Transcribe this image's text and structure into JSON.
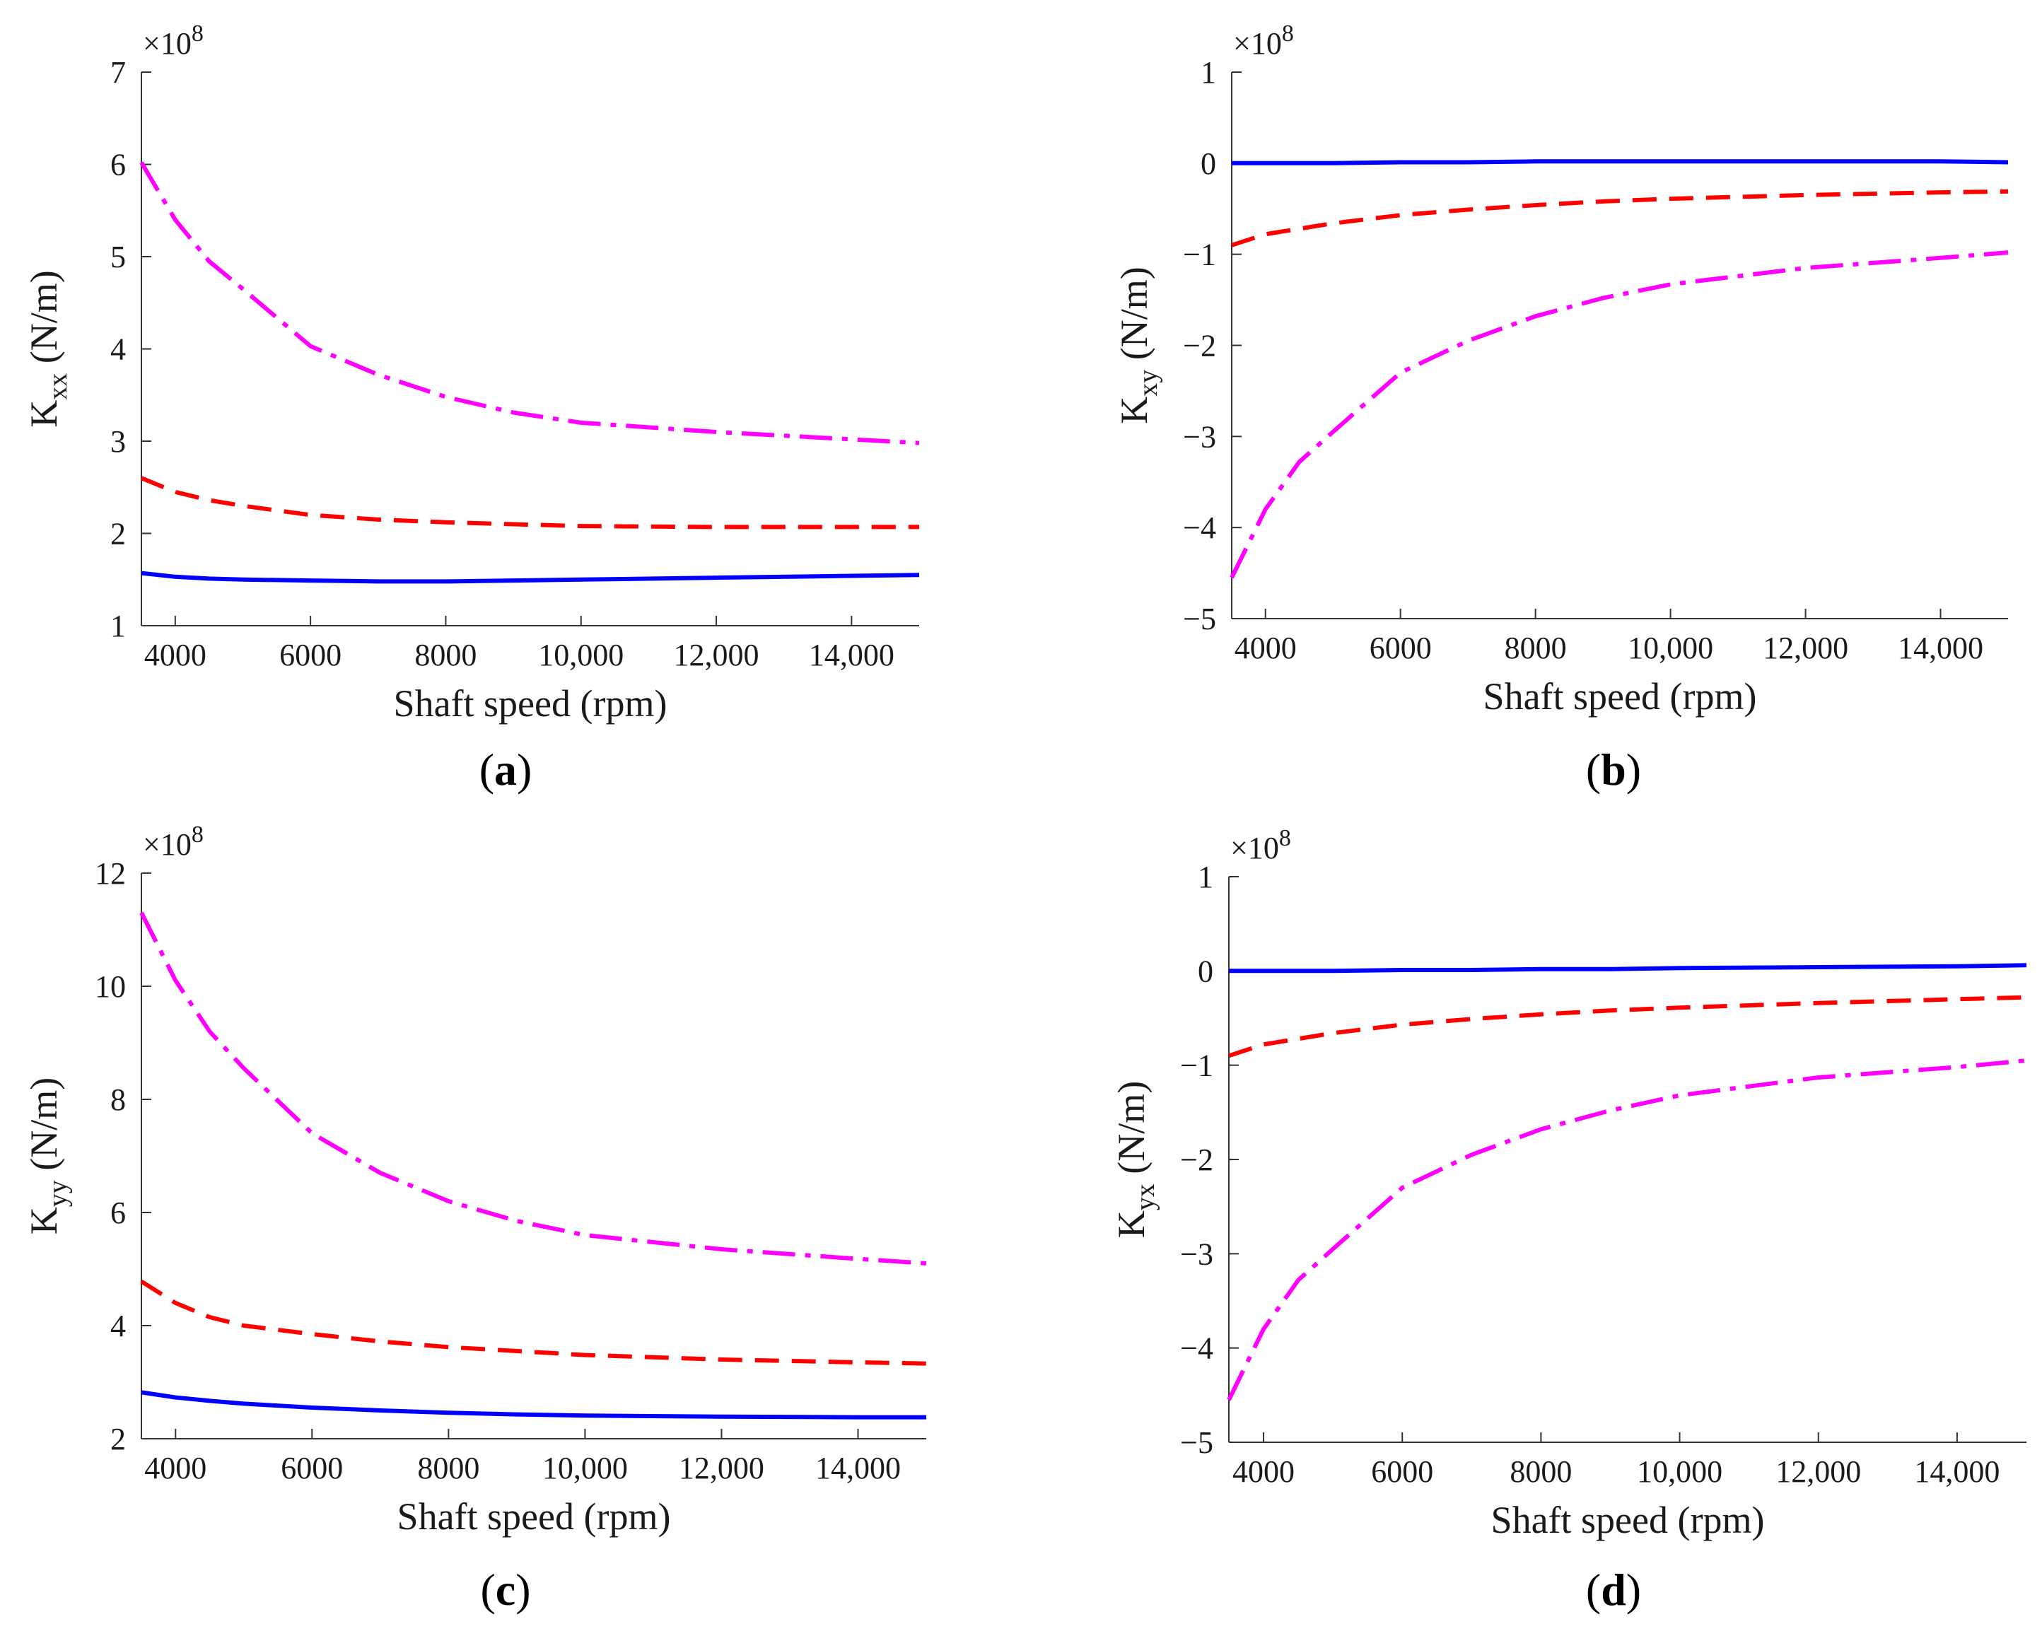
{
  "chart_data": [
    {
      "type": "line",
      "panel_label": "a",
      "ylabel_main": "K",
      "ylabel_sub": "xx",
      "ylabel_unit": " (N/m)",
      "xlabel": "Shaft speed (rpm)",
      "multiplier_base": "×10",
      "multiplier_exp": "8",
      "xlim": [
        3500,
        15000
      ],
      "ylim": [
        1,
        7
      ],
      "xticks": [
        4000,
        6000,
        8000,
        10000,
        12000,
        14000
      ],
      "xtick_labels": [
        "4000",
        "6000",
        "8000",
        "10,000",
        "12,000",
        "14,000"
      ],
      "yticks": [
        1,
        2,
        3,
        4,
        5,
        6,
        7
      ],
      "ytick_labels": [
        "1",
        "2",
        "3",
        "4",
        "5",
        "6",
        "7"
      ],
      "x": [
        3500,
        4000,
        4500,
        5000,
        6000,
        7000,
        8000,
        9000,
        10000,
        12000,
        14000,
        15000
      ],
      "series": [
        {
          "name": "solid",
          "color": "#0000ff",
          "style": "solid",
          "values": [
            1.57,
            1.53,
            1.51,
            1.5,
            1.49,
            1.48,
            1.48,
            1.49,
            1.5,
            1.52,
            1.54,
            1.55
          ]
        },
        {
          "name": "dashed",
          "color": "#ff0000",
          "style": "dashed",
          "values": [
            2.6,
            2.45,
            2.36,
            2.3,
            2.2,
            2.15,
            2.12,
            2.1,
            2.08,
            2.07,
            2.07,
            2.07
          ]
        },
        {
          "name": "dashdot",
          "color": "#ff00ff",
          "style": "dashdot",
          "values": [
            6.02,
            5.4,
            4.95,
            4.65,
            4.03,
            3.72,
            3.48,
            3.31,
            3.2,
            3.1,
            3.02,
            2.98
          ]
        }
      ]
    },
    {
      "type": "line",
      "panel_label": "b",
      "ylabel_main": "K",
      "ylabel_sub": "xy",
      "ylabel_unit": " (N/m)",
      "xlabel": "Shaft speed (rpm)",
      "multiplier_base": "×10",
      "multiplier_exp": "8",
      "xlim": [
        3500,
        15000
      ],
      "ylim": [
        -5,
        1
      ],
      "xticks": [
        4000,
        6000,
        8000,
        10000,
        12000,
        14000
      ],
      "xtick_labels": [
        "4000",
        "6000",
        "8000",
        "10,000",
        "12,000",
        "14,000"
      ],
      "yticks": [
        1,
        0,
        -1,
        -2,
        -3,
        -4,
        -5
      ],
      "ytick_labels": [
        "1",
        "0",
        "−1",
        "−2",
        "−3",
        "−4",
        "−5"
      ],
      "x": [
        3500,
        4000,
        4500,
        5000,
        6000,
        7000,
        8000,
        9000,
        10000,
        12000,
        14000,
        15000
      ],
      "series": [
        {
          "name": "solid",
          "color": "#0000ff",
          "style": "solid",
          "values": [
            0.0,
            0.0,
            0.0,
            0.0,
            0.01,
            0.01,
            0.02,
            0.02,
            0.02,
            0.02,
            0.02,
            0.01
          ]
        },
        {
          "name": "dashed",
          "color": "#ff0000",
          "style": "dashed",
          "values": [
            -0.9,
            -0.78,
            -0.72,
            -0.66,
            -0.57,
            -0.51,
            -0.46,
            -0.42,
            -0.39,
            -0.35,
            -0.32,
            -0.31
          ]
        },
        {
          "name": "dashdot",
          "color": "#ff00ff",
          "style": "dashdot",
          "values": [
            -4.55,
            -3.8,
            -3.28,
            -2.95,
            -2.3,
            -1.95,
            -1.68,
            -1.48,
            -1.33,
            -1.15,
            -1.04,
            -0.98
          ]
        }
      ]
    },
    {
      "type": "line",
      "panel_label": "c",
      "ylabel_main": "K",
      "ylabel_sub": "yy",
      "ylabel_unit": " (N/m)",
      "xlabel": "Shaft speed (rpm)",
      "multiplier_base": "×10",
      "multiplier_exp": "8",
      "xlim": [
        3500,
        15000
      ],
      "ylim": [
        2,
        12
      ],
      "xticks": [
        4000,
        6000,
        8000,
        10000,
        12000,
        14000
      ],
      "xtick_labels": [
        "4000",
        "6000",
        "8000",
        "10,000",
        "12,000",
        "14,000"
      ],
      "yticks": [
        2,
        4,
        6,
        8,
        10,
        12
      ],
      "ytick_labels": [
        "2",
        "4",
        "6",
        "8",
        "10",
        "12"
      ],
      "x": [
        3500,
        4000,
        4500,
        5000,
        6000,
        7000,
        8000,
        9000,
        10000,
        12000,
        14000,
        15000
      ],
      "series": [
        {
          "name": "solid",
          "color": "#0000ff",
          "style": "solid",
          "values": [
            2.82,
            2.73,
            2.67,
            2.62,
            2.55,
            2.5,
            2.46,
            2.43,
            2.41,
            2.39,
            2.38,
            2.38
          ]
        },
        {
          "name": "dashed",
          "color": "#ff0000",
          "style": "dashed",
          "values": [
            4.78,
            4.4,
            4.15,
            4.0,
            3.85,
            3.72,
            3.62,
            3.55,
            3.48,
            3.4,
            3.35,
            3.33
          ]
        },
        {
          "name": "dashdot",
          "color": "#ff00ff",
          "style": "dashdot",
          "values": [
            11.3,
            10.1,
            9.2,
            8.55,
            7.4,
            6.7,
            6.2,
            5.85,
            5.6,
            5.35,
            5.18,
            5.1
          ]
        }
      ]
    },
    {
      "type": "line",
      "panel_label": "d",
      "ylabel_main": "K",
      "ylabel_sub": "yx",
      "ylabel_unit": " (N/m)",
      "xlabel": "Shaft speed (rpm)",
      "multiplier_base": "×10",
      "multiplier_exp": "8",
      "xlim": [
        3500,
        15000
      ],
      "ylim": [
        -5,
        1
      ],
      "xticks": [
        4000,
        6000,
        8000,
        10000,
        12000,
        14000
      ],
      "xtick_labels": [
        "4000",
        "6000",
        "8000",
        "10,000",
        "12,000",
        "14,000"
      ],
      "yticks": [
        1,
        0,
        -1,
        -2,
        -3,
        -4,
        -5
      ],
      "ytick_labels": [
        "1",
        "0",
        "−1",
        "−2",
        "−3",
        "−4",
        "−5"
      ],
      "x": [
        3500,
        4000,
        4500,
        5000,
        6000,
        7000,
        8000,
        9000,
        10000,
        12000,
        14000,
        15000
      ],
      "series": [
        {
          "name": "solid",
          "color": "#0000ff",
          "style": "solid",
          "values": [
            0.0,
            0.0,
            0.0,
            0.0,
            0.01,
            0.01,
            0.02,
            0.02,
            0.03,
            0.04,
            0.05,
            0.06
          ]
        },
        {
          "name": "dashed",
          "color": "#ff0000",
          "style": "dashed",
          "values": [
            -0.9,
            -0.78,
            -0.72,
            -0.66,
            -0.57,
            -0.51,
            -0.46,
            -0.42,
            -0.39,
            -0.34,
            -0.3,
            -0.28
          ]
        },
        {
          "name": "dashdot",
          "color": "#ff00ff",
          "style": "dashdot",
          "values": [
            -4.55,
            -3.8,
            -3.28,
            -2.95,
            -2.3,
            -1.95,
            -1.68,
            -1.48,
            -1.32,
            -1.13,
            -1.02,
            -0.95
          ]
        }
      ]
    }
  ]
}
